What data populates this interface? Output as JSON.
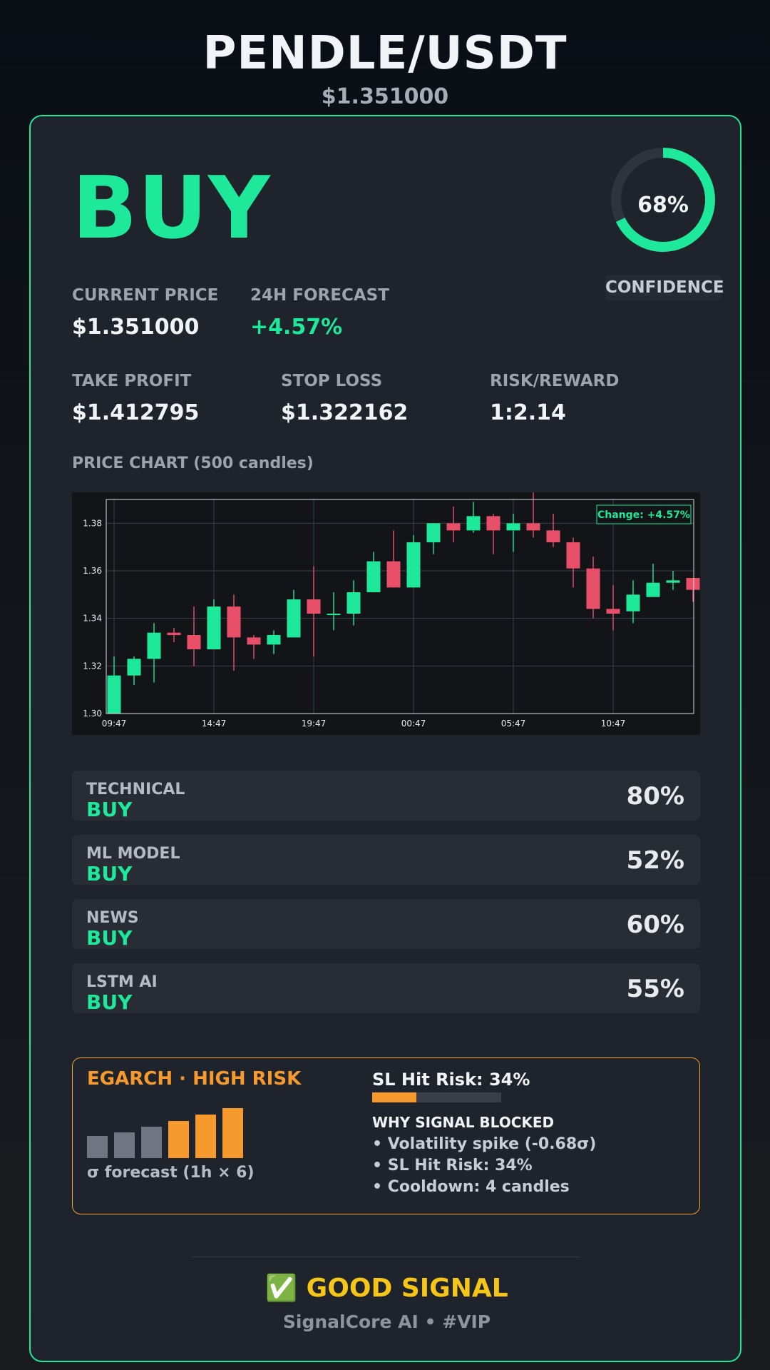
{
  "header": {
    "pair": "PENDLE/USDT",
    "price": "$1.351000"
  },
  "signal": {
    "action": "BUY",
    "confidence_pct": 68,
    "confidence_text": "68%",
    "confidence_label": "CONFIDENCE"
  },
  "stats": {
    "current_price_label": "CURRENT PRICE",
    "current_price": "$1.351000",
    "forecast_label": "24H FORECAST",
    "forecast": "+4.57%",
    "take_profit_label": "TAKE PROFIT",
    "take_profit": "$1.412795",
    "stop_loss_label": "STOP LOSS",
    "stop_loss": "$1.322162",
    "risk_reward_label": "RISK/REWARD",
    "risk_reward": "1:2.14"
  },
  "chart_title": "PRICE CHART (500 candles)",
  "chart_data": {
    "type": "candlestick",
    "ylim": [
      1.3,
      1.39
    ],
    "yticks": [
      "1.30",
      "1.32",
      "1.34",
      "1.36",
      "1.38"
    ],
    "xticks": [
      "09:47",
      "14:47",
      "19:47",
      "00:47",
      "05:47",
      "10:47"
    ],
    "grid": true,
    "annotation": "Change: +4.57%",
    "up_color": "#1ee899",
    "down_color": "#e8506a",
    "candles": [
      {
        "o": 1.3,
        "h": 1.324,
        "l": 1.3,
        "c": 1.316
      },
      {
        "o": 1.316,
        "h": 1.324,
        "l": 1.312,
        "c": 1.323
      },
      {
        "o": 1.323,
        "h": 1.338,
        "l": 1.313,
        "c": 1.334
      },
      {
        "o": 1.334,
        "h": 1.336,
        "l": 1.33,
        "c": 1.333
      },
      {
        "o": 1.333,
        "h": 1.345,
        "l": 1.32,
        "c": 1.327
      },
      {
        "o": 1.327,
        "h": 1.348,
        "l": 1.327,
        "c": 1.345
      },
      {
        "o": 1.345,
        "h": 1.35,
        "l": 1.318,
        "c": 1.332
      },
      {
        "o": 1.332,
        "h": 1.333,
        "l": 1.323,
        "c": 1.329
      },
      {
        "o": 1.329,
        "h": 1.335,
        "l": 1.325,
        "c": 1.333
      },
      {
        "o": 1.332,
        "h": 1.352,
        "l": 1.332,
        "c": 1.348
      },
      {
        "o": 1.348,
        "h": 1.362,
        "l": 1.324,
        "c": 1.342
      },
      {
        "o": 1.342,
        "h": 1.351,
        "l": 1.335,
        "c": 1.342
      },
      {
        "o": 1.342,
        "h": 1.356,
        "l": 1.337,
        "c": 1.351
      },
      {
        "o": 1.351,
        "h": 1.368,
        "l": 1.351,
        "c": 1.364
      },
      {
        "o": 1.364,
        "h": 1.377,
        "l": 1.353,
        "c": 1.353
      },
      {
        "o": 1.353,
        "h": 1.375,
        "l": 1.353,
        "c": 1.372
      },
      {
        "o": 1.372,
        "h": 1.38,
        "l": 1.367,
        "c": 1.38
      },
      {
        "o": 1.38,
        "h": 1.387,
        "l": 1.372,
        "c": 1.377
      },
      {
        "o": 1.377,
        "h": 1.389,
        "l": 1.376,
        "c": 1.383
      },
      {
        "o": 1.383,
        "h": 1.384,
        "l": 1.367,
        "c": 1.377
      },
      {
        "o": 1.377,
        "h": 1.384,
        "l": 1.368,
        "c": 1.38
      },
      {
        "o": 1.38,
        "h": 1.393,
        "l": 1.374,
        "c": 1.377
      },
      {
        "o": 1.377,
        "h": 1.384,
        "l": 1.37,
        "c": 1.372
      },
      {
        "o": 1.372,
        "h": 1.374,
        "l": 1.353,
        "c": 1.361
      },
      {
        "o": 1.361,
        "h": 1.366,
        "l": 1.34,
        "c": 1.344
      },
      {
        "o": 1.344,
        "h": 1.354,
        "l": 1.335,
        "c": 1.342
      },
      {
        "o": 1.343,
        "h": 1.356,
        "l": 1.338,
        "c": 1.35
      },
      {
        "o": 1.349,
        "h": 1.363,
        "l": 1.349,
        "c": 1.355
      },
      {
        "o": 1.355,
        "h": 1.36,
        "l": 1.352,
        "c": 1.356
      },
      {
        "o": 1.357,
        "h": 1.357,
        "l": 1.347,
        "c": 1.352
      }
    ]
  },
  "sources": [
    {
      "name": "TECHNICAL",
      "signal": "BUY",
      "pct": "80%"
    },
    {
      "name": "ML MODEL",
      "signal": "BUY",
      "pct": "52%"
    },
    {
      "name": "NEWS",
      "signal": "BUY",
      "pct": "60%"
    },
    {
      "name": "LSTM AI",
      "signal": "BUY",
      "pct": "55%"
    }
  ],
  "risk": {
    "title": "EGARCH · HIGH RISK",
    "sigma_forecast": [
      0.42,
      0.5,
      0.6,
      0.72,
      0.84,
      0.96
    ],
    "sigma_caption": "σ forecast (1h × 6)",
    "sl_hit_title": "SL Hit Risk: 34%",
    "sl_hit_fraction": 0.34,
    "why_title": "WHY SIGNAL BLOCKED",
    "why_items": [
      "• Volatility spike (-0.68σ)",
      "• SL Hit Risk: 34%",
      "• Cooldown: 4 candles"
    ],
    "colors": {
      "low": "#6f7582",
      "high": "#f79a2e"
    }
  },
  "footer": {
    "verdict": "✅ GOOD SIGNAL",
    "brand": "SignalCore AI • #VIP"
  }
}
